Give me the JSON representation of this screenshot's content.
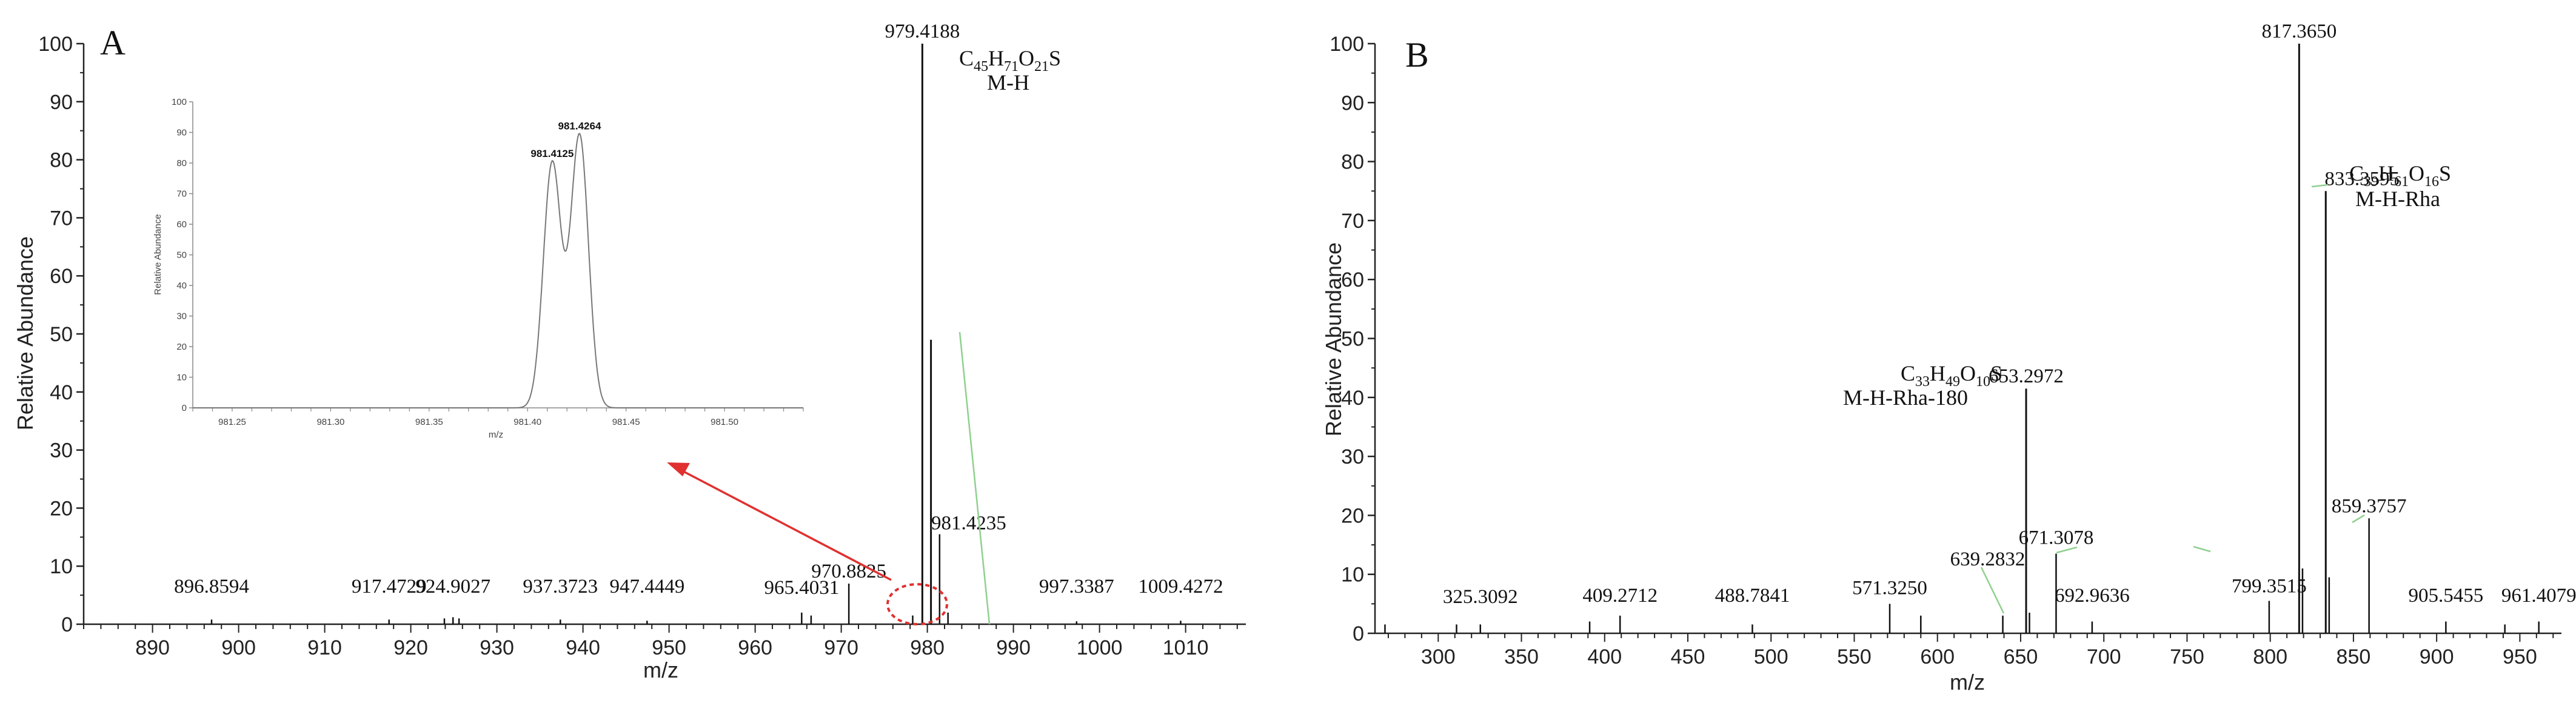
{
  "chart_data": [
    {
      "type": "bar",
      "panel_label": "A",
      "xlabel": "m/z",
      "ylabel": "Relative Abundance",
      "xlim": [
        882,
        1017
      ],
      "ylim": [
        0,
        100
      ],
      "xticks": [
        890,
        900,
        910,
        920,
        930,
        940,
        950,
        960,
        970,
        980,
        990,
        1000,
        1010
      ],
      "yticks": [
        0,
        10,
        20,
        30,
        40,
        50,
        60,
        70,
        80,
        90,
        100
      ],
      "peaks": [
        {
          "mz": 979.4188,
          "intensity": 100,
          "label": "979.4188"
        },
        {
          "mz": 980.4222,
          "intensity": 49,
          "label": ""
        },
        {
          "mz": 981.4235,
          "intensity": 15.5,
          "label": "981.4235"
        },
        {
          "mz": 970.8825,
          "intensity": 7,
          "label": "970.8825"
        },
        {
          "mz": 965.4031,
          "intensity": 2,
          "label": "965.4031"
        },
        {
          "mz": 896.8594,
          "intensity": 0.8,
          "label": "896.8594"
        },
        {
          "mz": 917.4729,
          "intensity": 0.8,
          "label": "917.4729"
        },
        {
          "mz": 924.9027,
          "intensity": 1.2,
          "label": "924.9027"
        },
        {
          "mz": 937.3723,
          "intensity": 0.8,
          "label": "937.3723"
        },
        {
          "mz": 947.4449,
          "intensity": 0.6,
          "label": "947.4449"
        },
        {
          "mz": 997.3387,
          "intensity": 0.5,
          "label": "997.3387"
        },
        {
          "mz": 1009.4272,
          "intensity": 0.6,
          "label": "1009.4272"
        },
        {
          "mz": 923.9,
          "intensity": 1.0,
          "label": ""
        },
        {
          "mz": 925.6,
          "intensity": 1.0,
          "label": ""
        },
        {
          "mz": 966.5,
          "intensity": 1.5,
          "label": ""
        },
        {
          "mz": 982.4,
          "intensity": 2.0,
          "label": ""
        },
        {
          "mz": 978.3,
          "intensity": 1.5,
          "label": ""
        }
      ],
      "annotations": [
        {
          "formula": {
            "base": "C",
            "n1": "45",
            "e2": "H",
            "n2": "71",
            "e3": "O",
            "n3": "21",
            "e4": "S"
          },
          "ion": "M-H"
        }
      ],
      "inset": {
        "xlabel": "m/z",
        "ylabel": "Relative Abundance",
        "xlim": [
          981.23,
          981.54
        ],
        "ylim": [
          0,
          100
        ],
        "xticks": [
          "981.25",
          "981.30",
          "981.35",
          "981.40",
          "981.45",
          "981.50"
        ],
        "yticks": [
          0,
          10,
          20,
          30,
          40,
          50,
          60,
          70,
          80,
          90,
          100
        ],
        "peaks": [
          {
            "mz": 981.4125,
            "intensity": 80,
            "label": "981.4125"
          },
          {
            "mz": 981.4264,
            "intensity": 89,
            "label": "981.4264"
          }
        ]
      }
    },
    {
      "type": "bar",
      "panel_label": "B",
      "xlabel": "m/z",
      "ylabel": "Relative Abundance",
      "xlim": [
        262,
        975
      ],
      "ylim": [
        0,
        100
      ],
      "xticks": [
        300,
        350,
        400,
        450,
        500,
        550,
        600,
        650,
        700,
        750,
        800,
        850,
        900,
        950
      ],
      "yticks": [
        0,
        10,
        20,
        30,
        40,
        50,
        60,
        70,
        80,
        90,
        100
      ],
      "peaks": [
        {
          "mz": 817.365,
          "intensity": 100,
          "label": "817.3650"
        },
        {
          "mz": 833.3595,
          "intensity": 75,
          "label": "833.3595"
        },
        {
          "mz": 653.2972,
          "intensity": 41.5,
          "label": "653.2972"
        },
        {
          "mz": 859.3757,
          "intensity": 19.5,
          "label": "859.3757"
        },
        {
          "mz": 671.3078,
          "intensity": 13.5,
          "label": "671.3078"
        },
        {
          "mz": 819.4,
          "intensity": 11,
          "label": ""
        },
        {
          "mz": 835.4,
          "intensity": 9.5,
          "label": ""
        },
        {
          "mz": 571.325,
          "intensity": 5,
          "label": "571.3250"
        },
        {
          "mz": 639.2832,
          "intensity": 3,
          "label": "639.2832"
        },
        {
          "mz": 655.3,
          "intensity": 3.5,
          "label": ""
        },
        {
          "mz": 799.3515,
          "intensity": 5.5,
          "label": "799.3515"
        },
        {
          "mz": 692.9636,
          "intensity": 2,
          "label": "692.9636"
        },
        {
          "mz": 409.2712,
          "intensity": 3,
          "label": "409.2712"
        },
        {
          "mz": 325.3092,
          "intensity": 1.5,
          "label": "325.3092"
        },
        {
          "mz": 488.7841,
          "intensity": 1.5,
          "label": "488.7841"
        },
        {
          "mz": 905.5455,
          "intensity": 2,
          "label": "905.5455"
        },
        {
          "mz": 961.4079,
          "intensity": 2,
          "label": "961.4079"
        },
        {
          "mz": 268,
          "intensity": 1.5,
          "label": ""
        },
        {
          "mz": 311,
          "intensity": 1.5,
          "label": ""
        },
        {
          "mz": 391,
          "intensity": 2,
          "label": ""
        },
        {
          "mz": 590,
          "intensity": 3,
          "label": ""
        },
        {
          "mz": 941,
          "intensity": 1.5,
          "label": ""
        }
      ],
      "annotations": [
        {
          "formula": {
            "base": "C",
            "n1": "39",
            "e2": "H",
            "n2": "61",
            "e3": "O",
            "n3": "16",
            "e4": "S"
          },
          "ion": "M-H-Rha"
        },
        {
          "formula": {
            "base": "C",
            "n1": "33",
            "e2": "H",
            "n2": "49",
            "e3": "O",
            "n3": "10",
            "e4": "S"
          },
          "ion": "M-H-Rha-180"
        }
      ]
    }
  ]
}
